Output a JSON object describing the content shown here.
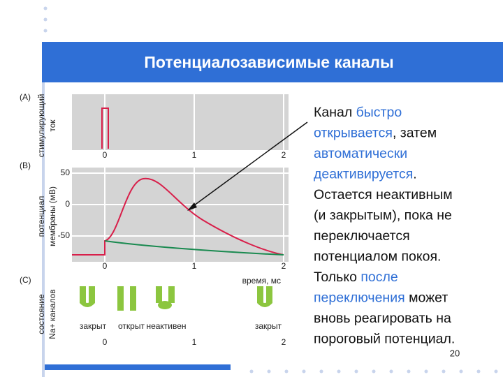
{
  "title": "Потенциалозависимые каналы",
  "figure": {
    "panel_a": {
      "label": "(A)",
      "ylabel": [
        "стимулирующий",
        "ток"
      ],
      "xticks": [
        0,
        1,
        2
      ]
    },
    "panel_b": {
      "label": "(B)",
      "ylabel": [
        "потенциал",
        "мембраны (мВ)"
      ],
      "yticks": [
        50,
        0,
        -50
      ],
      "xticks": [
        0,
        1,
        2
      ],
      "xlabel": "время, мс"
    },
    "panel_c": {
      "label": "(C)",
      "ylabel": [
        "состояние",
        "Na+ каналов"
      ],
      "states": [
        "закрыт",
        "открыт",
        "неактивен",
        "закрыт"
      ],
      "xticks": [
        0,
        1,
        2
      ]
    }
  },
  "text": {
    "lines": [
      [
        {
          "text": "Канал ",
          "highlight": false
        },
        {
          "text": "быстро",
          "highlight": true
        }
      ],
      [
        {
          "text": "открывается",
          "highlight": true
        },
        {
          "text": ", затем",
          "highlight": false
        }
      ],
      [
        {
          "text": "автоматически",
          "highlight": true
        }
      ],
      [
        {
          "text": "деактивируется",
          "highlight": true
        },
        {
          "text": ".",
          "highlight": false
        }
      ],
      [
        {
          "text": "Остается неактивным",
          "highlight": false
        }
      ],
      [
        {
          "text": "(и закрытым), пока не",
          "highlight": false
        }
      ],
      [
        {
          "text": "переключается",
          "highlight": false
        }
      ],
      [
        {
          "text": "потенциалом покоя.",
          "highlight": false
        }
      ],
      [
        {
          "text": "Только ",
          "highlight": false
        },
        {
          "text": "после",
          "highlight": true
        }
      ],
      [
        {
          "text": "переключения",
          "highlight": true
        },
        {
          "text": " может",
          "highlight": false
        }
      ],
      [
        {
          "text": "вновь реагировать на",
          "highlight": false
        }
      ],
      [
        {
          "text": "пороговый потенциал.",
          "highlight": false
        }
      ]
    ]
  },
  "page_number": "20"
}
